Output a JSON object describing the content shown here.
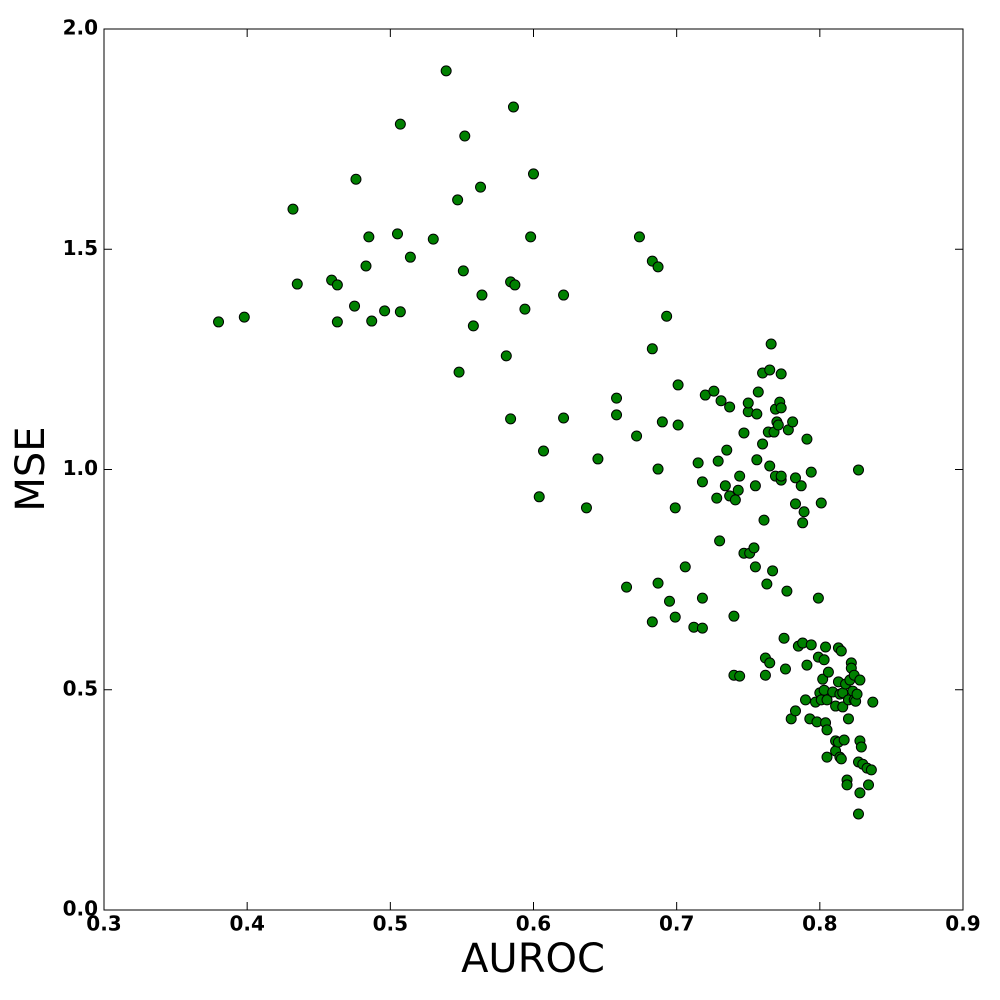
{
  "chart_data": {
    "type": "scatter",
    "x_label": "AUROC",
    "y_label": "MSE",
    "xlim": [
      0.3,
      0.9
    ],
    "ylim": [
      0,
      2
    ],
    "xticks": [
      0.3,
      0.4,
      0.5,
      0.6,
      0.7,
      0.8,
      0.9
    ],
    "yticks": [
      {
        "value": 0,
        "label": "0.0"
      },
      0.5,
      {
        "value": 1,
        "label": "1.0"
      },
      1.5,
      {
        "value": 2,
        "label": "2.0"
      }
    ],
    "grid": false,
    "series": [
      {
        "color": "#008000",
        "x": [
          0.38,
          0.398,
          0.432,
          0.435,
          0.459,
          0.463,
          0.463,
          0.475,
          0.476,
          0.483,
          0.485,
          0.487,
          0.496,
          0.505,
          0.507,
          0.507,
          0.514,
          0.53,
          0.539,
          0.547,
          0.548,
          0.551,
          0.552,
          0.558,
          0.563,
          0.564,
          0.581,
          0.584,
          0.584,
          0.587,
          0.586,
          0.594,
          0.598,
          0.6,
          0.604,
          0.607,
          0.621,
          0.621,
          0.637,
          0.645,
          0.658,
          0.658,
          0.665,
          0.672,
          0.674,
          0.683,
          0.683,
          0.683,
          0.687,
          0.687,
          0.687,
          0.69,
          0.693,
          0.695,
          0.699,
          0.699,
          0.701,
          0.701,
          0.706,
          0.712,
          0.715,
          0.718,
          0.718,
          0.718,
          0.72,
          0.726,
          0.728,
          0.729,
          0.73,
          0.731,
          0.734,
          0.735,
          0.737,
          0.737,
          0.74,
          0.74,
          0.741,
          0.743,
          0.744,
          0.744,
          0.747,
          0.747,
          0.75,
          0.75,
          0.751,
          0.754,
          0.755,
          0.755,
          0.757,
          0.756,
          0.756,
          0.76,
          0.76,
          0.761,
          0.762,
          0.762,
          0.763,
          0.764,
          0.765,
          0.765,
          0.765,
          0.766,
          0.768,
          0.769,
          0.767,
          0.769,
          0.77,
          0.771,
          0.772,
          0.773,
          0.773,
          0.773,
          0.773,
          0.775,
          0.777,
          0.776,
          0.778,
          0.781,
          0.783,
          0.783,
          0.78,
          0.783,
          0.785,
          0.787,
          0.788,
          0.789,
          0.788,
          0.791,
          0.79,
          0.791,
          0.793,
          0.794,
          0.794,
          0.797,
          0.798,
          0.799,
          0.799,
          0.8,
          0.801,
          0.801,
          0.802,
          0.803,
          0.804,
          0.804,
          0.805,
          0.805,
          0.803,
          0.806,
          0.805,
          0.809,
          0.811,
          0.811,
          0.811,
          0.813,
          0.813,
          0.813,
          0.814,
          0.814,
          0.815,
          0.815,
          0.816,
          0.816,
          0.817,
          0.818,
          0.819,
          0.819,
          0.82,
          0.82,
          0.821,
          0.822,
          0.822,
          0.823,
          0.824,
          0.824,
          0.825,
          0.826,
          0.827,
          0.828,
          0.827,
          0.827,
          0.828,
          0.829,
          0.828,
          0.83,
          0.833,
          0.834,
          0.836,
          0.837
        ],
        "values": [
          1.335,
          1.346,
          1.591,
          1.421,
          1.43,
          1.419,
          1.335,
          1.371,
          1.659,
          1.462,
          1.528,
          1.337,
          1.36,
          1.535,
          1.784,
          1.358,
          1.482,
          1.523,
          1.905,
          1.612,
          1.221,
          1.451,
          1.757,
          1.326,
          1.641,
          1.396,
          1.258,
          1.115,
          1.426,
          1.419,
          1.823,
          1.364,
          1.528,
          1.671,
          0.938,
          1.042,
          1.396,
          1.117,
          0.913,
          1.024,
          1.162,
          1.124,
          0.733,
          1.076,
          1.528,
          1.274,
          1.473,
          0.654,
          1.46,
          1.001,
          0.742,
          1.108,
          1.348,
          0.701,
          0.913,
          0.665,
          1.101,
          1.192,
          0.779,
          0.642,
          1.015,
          0.972,
          0.64,
          0.708,
          1.169,
          1.178,
          0.935,
          1.019,
          0.838,
          1.156,
          0.963,
          1.044,
          0.94,
          1.142,
          0.667,
          0.533,
          0.931,
          0.953,
          0.985,
          0.531,
          0.81,
          1.083,
          1.131,
          1.151,
          0.81,
          0.822,
          0.779,
          0.963,
          1.176,
          1.126,
          1.022,
          1.219,
          1.058,
          0.885,
          0.533,
          0.572,
          0.74,
          1.085,
          1.008,
          1.226,
          0.561,
          1.285,
          1.085,
          1.137,
          0.77,
          0.985,
          1.108,
          1.101,
          1.153,
          1.217,
          1.14,
          0.976,
          0.985,
          0.617,
          0.724,
          0.547,
          1.09,
          1.108,
          0.981,
          0.922,
          0.434,
          0.452,
          0.599,
          0.963,
          0.606,
          0.904,
          0.879,
          1.069,
          0.477,
          0.556,
          0.434,
          0.994,
          0.602,
          0.472,
          0.427,
          0.708,
          0.574,
          0.493,
          0.924,
          0.477,
          0.524,
          0.568,
          0.425,
          0.597,
          0.347,
          0.409,
          0.499,
          0.54,
          0.477,
          0.495,
          0.463,
          0.384,
          0.361,
          0.518,
          0.595,
          0.381,
          0.347,
          0.49,
          0.588,
          0.343,
          0.461,
          0.493,
          0.386,
          0.513,
          0.295,
          0.284,
          0.477,
          0.434,
          0.522,
          0.561,
          0.549,
          0.497,
          0.477,
          0.533,
          0.474,
          0.49,
          0.999,
          0.522,
          0.336,
          0.218,
          0.384,
          0.37,
          0.266,
          0.331,
          0.322,
          0.284,
          0.318,
          0.472
        ]
      }
    ]
  }
}
